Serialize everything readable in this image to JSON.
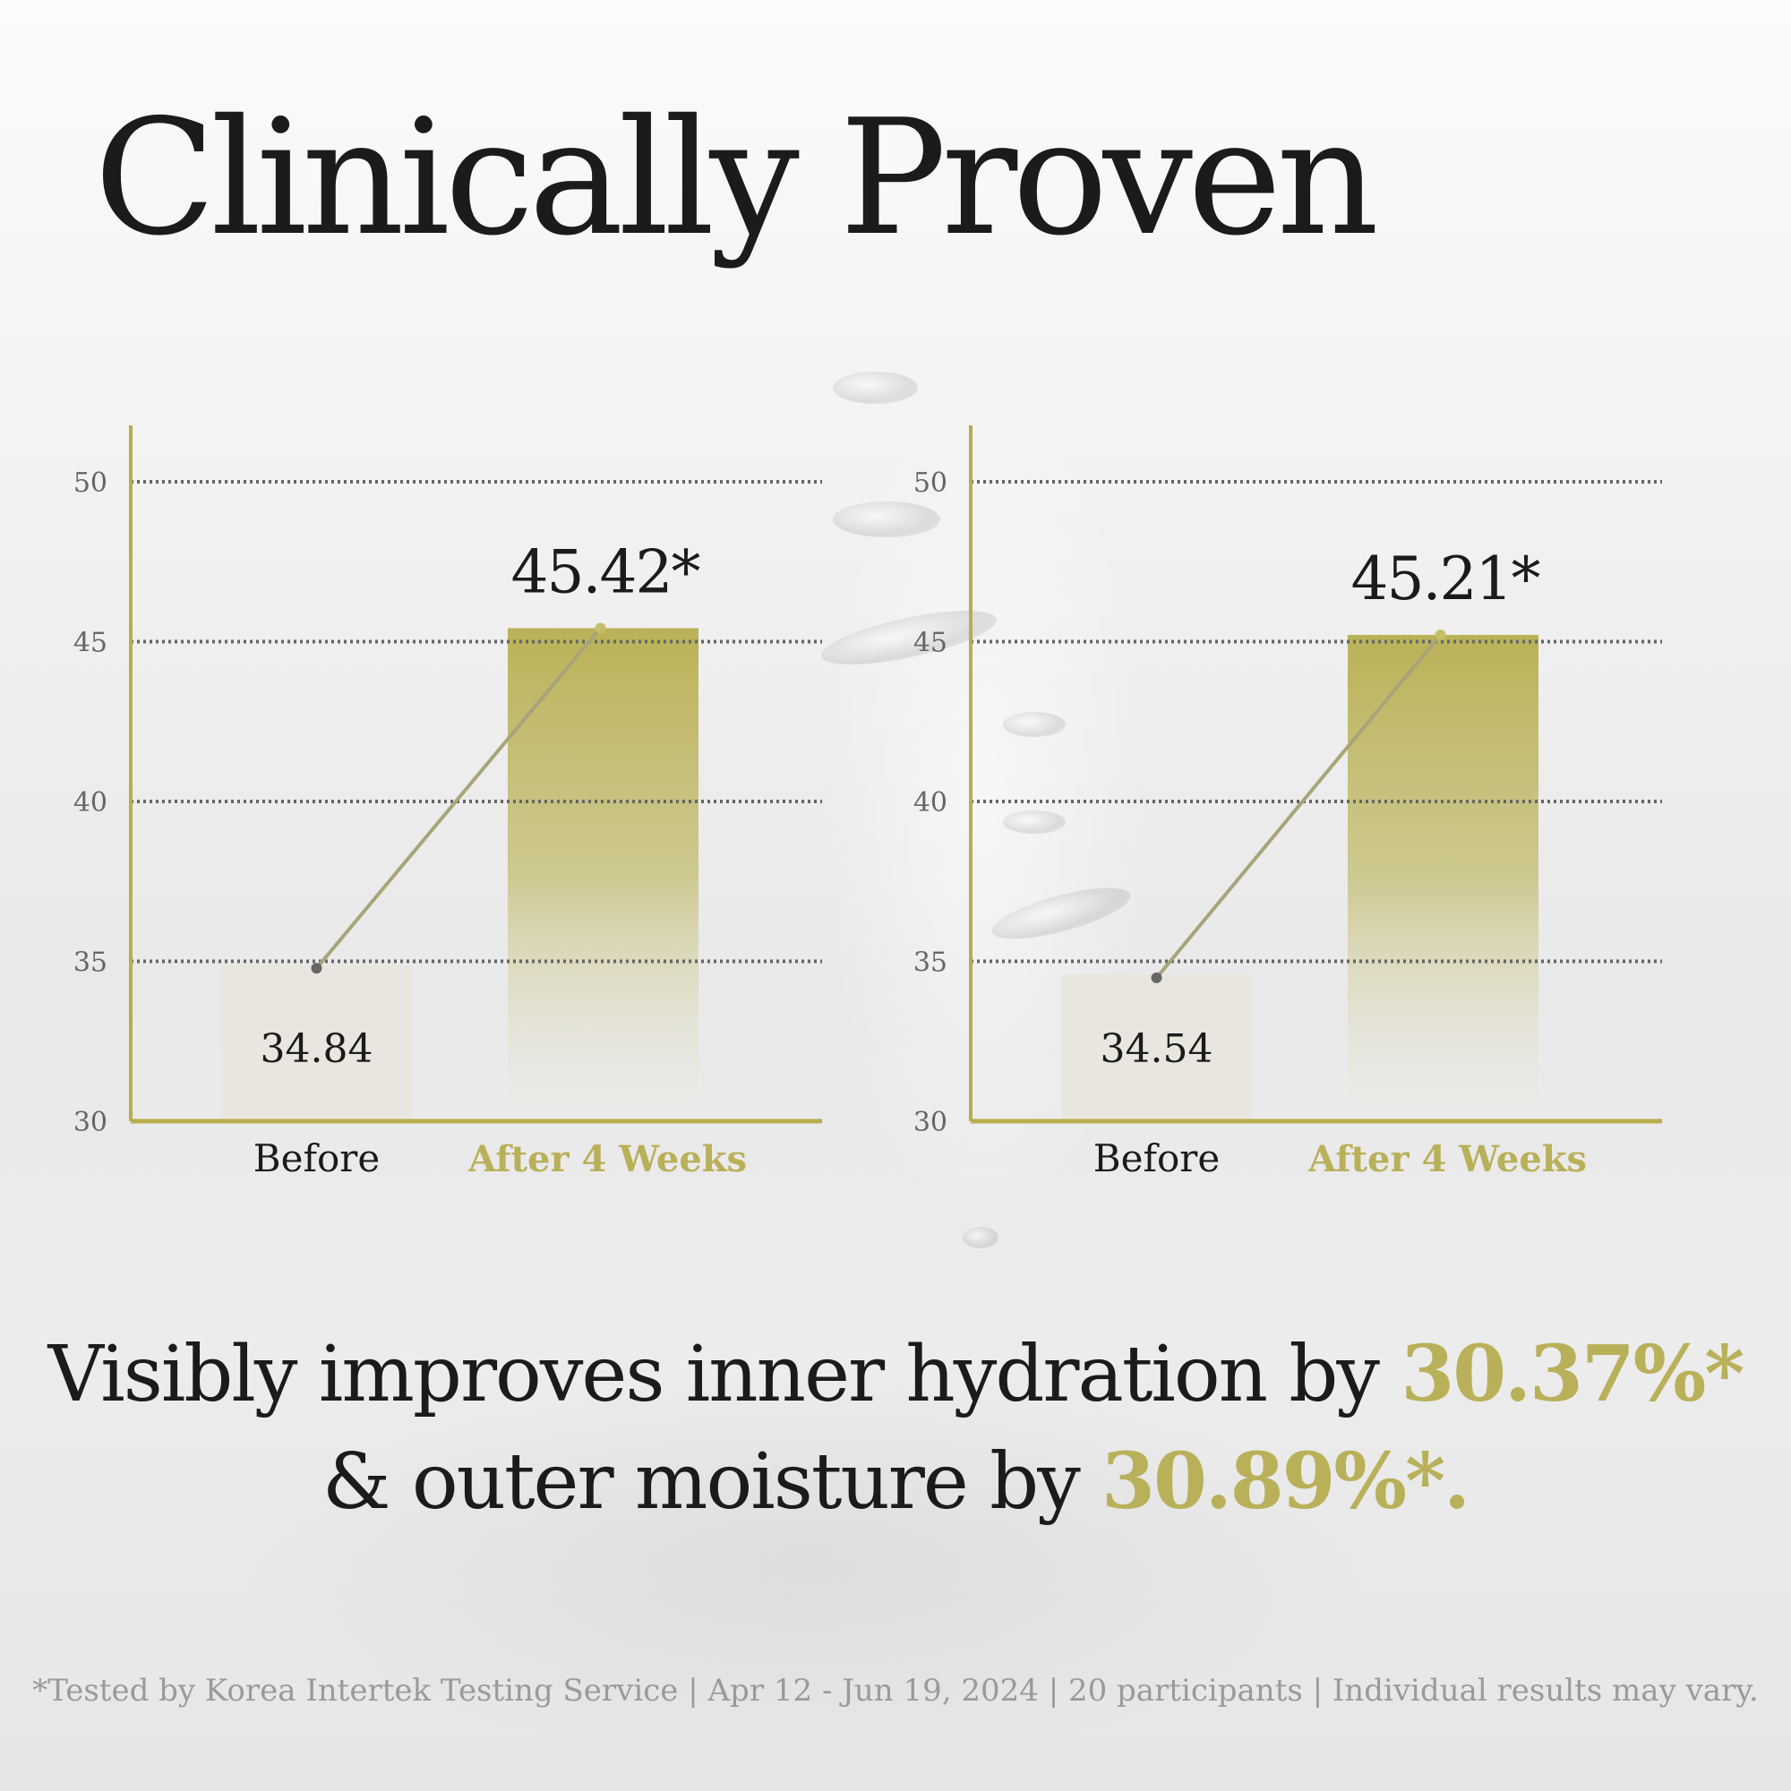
{
  "title": "Clinically Proven",
  "colors": {
    "accent": "#b9b05a",
    "axis": "#b8ad4e",
    "before_bar": "#e9e6df",
    "grid": "#666666",
    "connector": "#a8a47a",
    "text": "#1b1b1b",
    "footnote": "#9a9a9a"
  },
  "chart_data": [
    {
      "type": "bar",
      "categories": [
        "Before",
        "After 4 Weeks"
      ],
      "values": [
        34.84,
        45.42
      ],
      "value_labels": [
        "34.84",
        "45.42*"
      ],
      "yticks": [
        "30",
        "35",
        "40",
        "45",
        "50"
      ],
      "ylim": [
        30,
        50
      ],
      "grid": true
    },
    {
      "type": "bar",
      "categories": [
        "Before",
        "After 4 Weeks"
      ],
      "values": [
        34.54,
        45.21
      ],
      "value_labels": [
        "34.54",
        "45.21*"
      ],
      "yticks": [
        "30",
        "35",
        "40",
        "45",
        "50"
      ],
      "ylim": [
        30,
        50
      ],
      "grid": true
    }
  ],
  "headline": {
    "line1_text": "Visibly improves inner hydration by ",
    "line1_value": "30.37%*",
    "line2_text": "& outer moisture by ",
    "line2_value": "30.89%*."
  },
  "footnote": "*Tested by Korea Intertek Testing Service | Apr 12 - Jun 19, 2024 | 20 participants | Individual results may vary."
}
